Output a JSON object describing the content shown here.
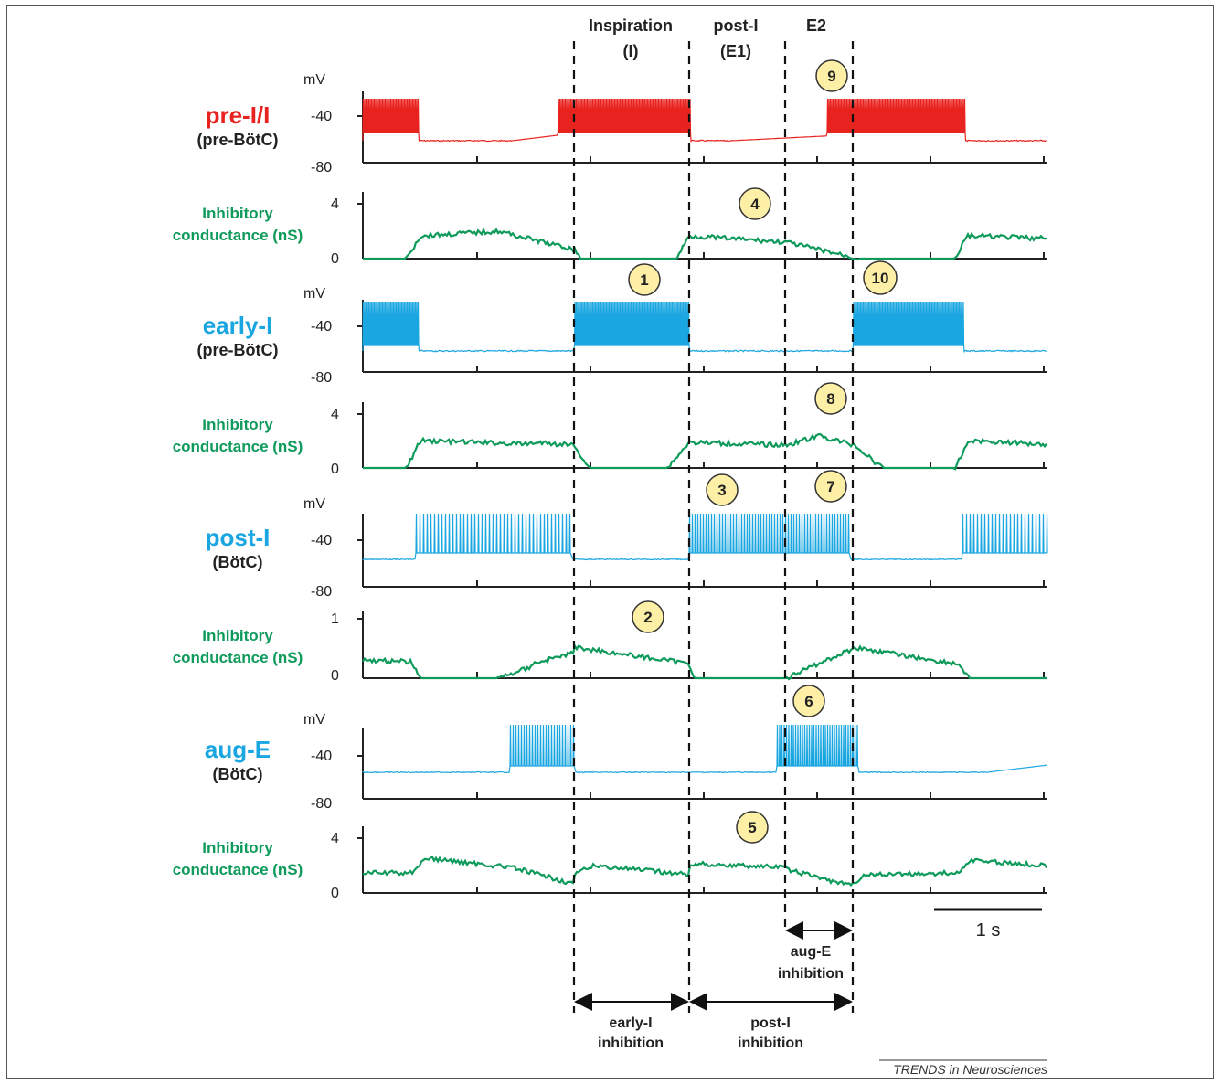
{
  "colors": {
    "preI": "#e8231f",
    "blue": "#1aa6e0",
    "green": "#0d9a5a",
    "badge_fill": "#fdf0a6",
    "badge_stroke": "#333333",
    "text": "#222222"
  },
  "phases": [
    {
      "label_line1": "Inspiration",
      "label_line2": "(I)"
    },
    {
      "label_line1": "post-I",
      "label_line2": "(E1)"
    },
    {
      "label_line1": "E2",
      "label_line2": ""
    }
  ],
  "axis_labels": {
    "mV": "mV",
    "v_top": "-40",
    "v_bottom": "-80",
    "g_zero": "0"
  },
  "rows": [
    {
      "name": "pre-I/I",
      "region": "(pre-BötC)",
      "color_key": "preI"
    },
    {
      "line1": "Inhibitory",
      "line2": "conductance (nS)",
      "gmax": "4"
    },
    {
      "name": "early-I",
      "region": "(pre-BötC)",
      "color_key": "blue"
    },
    {
      "line1": "Inhibitory",
      "line2": "conductance (nS)",
      "gmax": "4"
    },
    {
      "name": "post-I",
      "region": "(BötC)",
      "color_key": "blue"
    },
    {
      "line1": "Inhibitory",
      "line2": "conductance (nS)",
      "gmax": "1"
    },
    {
      "name": "aug-E",
      "region": "(BötC)",
      "color_key": "blue"
    },
    {
      "line1": "Inhibitory",
      "line2": "conductance (nS)",
      "gmax": "4"
    }
  ],
  "badges": [
    "1",
    "2",
    "3",
    "4",
    "5",
    "6",
    "7",
    "8",
    "9",
    "10"
  ],
  "scale_bar": {
    "label": "1 s",
    "seconds": 1
  },
  "inhibitions": [
    {
      "line1": "aug-E",
      "line2": "inhibition"
    },
    {
      "line1": "early-I",
      "line2": "inhibition"
    },
    {
      "line1": "post-I",
      "line2": "inhibition"
    }
  ],
  "credit": "TRENDS in Neurosciences"
}
